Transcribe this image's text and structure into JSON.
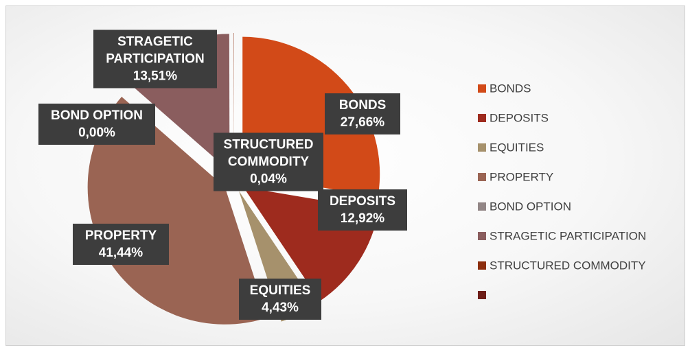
{
  "chart_data": {
    "type": "pie",
    "categories": [
      "BONDS",
      "DEPOSITS",
      "EQUITIES",
      "PROPERTY",
      "BOND OPTION",
      "STRAGETIC PARTICIPATION",
      "STRUCTURED COMMODITY",
      null
    ],
    "values": [
      27.66,
      12.92,
      4.43,
      41.44,
      0.0,
      13.51,
      0.04,
      null
    ],
    "value_labels": [
      "27,66%",
      "12,92%",
      "4,43%",
      "41,44%",
      "0,00%",
      "13,51%",
      "0,04%",
      null
    ],
    "colors": [
      "#d24a18",
      "#9e2b1e",
      "#a6916c",
      "#9a6453",
      "#928686",
      "#8a5d5e",
      "#8c2e0e",
      "#6e1e18"
    ],
    "legend": "right"
  }
}
